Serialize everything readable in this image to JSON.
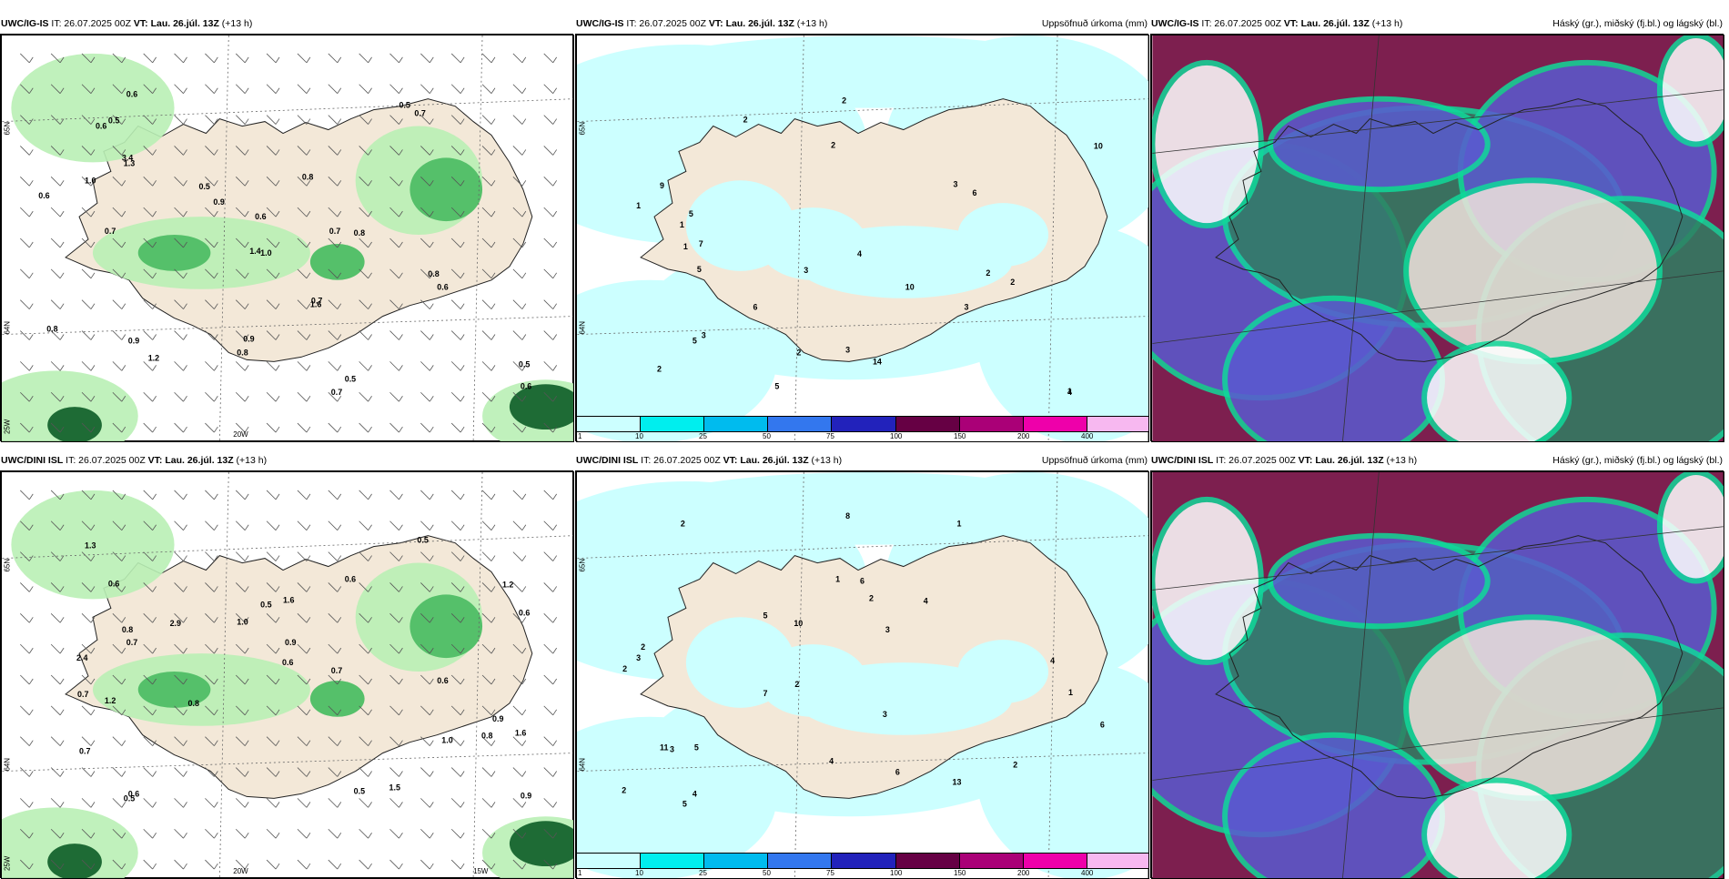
{
  "panels": [
    {
      "model": "UWC/IG-IS",
      "it": "IT: 26.07.2025 00Z",
      "vt_label": "VT:",
      "vt": "Lau. 26.júl. 13Z",
      "lead": "(+13 h)",
      "right": "",
      "labels": {
        "lat1": "65N",
        "lat2": "64N",
        "lat3": "25W",
        "lon1": "20W",
        "lon2": ""
      },
      "values": [
        "0.7",
        "0.5",
        "0.8",
        "0.6",
        "0.6",
        "0.8",
        "1.6",
        "0.7",
        "0.6",
        "0.6",
        "0.9",
        "0.5",
        "0.7",
        "1.0",
        "0.8",
        "0.5",
        "0.6",
        "0.8",
        "1.2",
        "3.4",
        "0.8",
        "0.7",
        "0.5",
        "1.3",
        "0.7",
        "0.9",
        "1.4",
        "1.0",
        "0.9",
        "0.6",
        "0.5"
      ]
    },
    {
      "model": "UWC/IG-IS",
      "it": "IT: 26.07.2025 00Z",
      "vt_label": "VT:",
      "vt": "Lau. 26.júl. 13Z",
      "lead": "(+13 h)",
      "right": "Uppsöfnuð úrkoma (mm)",
      "labels": {
        "lat1": "65N",
        "lat2": "64N",
        "lat3": "",
        "lon1": "",
        "lon2": ""
      },
      "values": [
        "2",
        "5",
        "3",
        "4",
        "2",
        "1",
        "5",
        "6",
        "10",
        "10",
        "3",
        "1",
        "2",
        "3",
        "5",
        "2",
        "3",
        "7",
        "5",
        "6",
        "9",
        "2",
        "14",
        "1",
        "2",
        "4",
        "3",
        "1",
        "2"
      ]
    },
    {
      "model": "UWC/IG-IS",
      "it": "IT: 26.07.2025 00Z",
      "vt_label": "VT:",
      "vt": "Lau. 26.júl. 13Z",
      "lead": "(+13 h)",
      "right": "Háský (gr.), miðský (fj.bl.) og lágský (bl.)",
      "labels": {
        "lat1": "",
        "lat2": "",
        "lat3": "",
        "lon1": "",
        "lon2": ""
      },
      "values": []
    },
    {
      "model": "UWC/DINI ISL",
      "it": "IT: 26.07.2025 00Z",
      "vt_label": "VT:",
      "vt": "Lau. 26.júl. 13Z",
      "lead": "(+13 h)",
      "right": "",
      "labels": {
        "lat1": "65N",
        "lat2": "64N",
        "lat3": "25W",
        "lon1": "20W",
        "lon2": "15W"
      },
      "values": [
        "0.6",
        "0.7",
        "0.5",
        "1.2",
        "0.9",
        "0.6",
        "0.5",
        "0.6",
        "1.0",
        "0.8",
        "0.7",
        "0.5",
        "0.6",
        "1.3",
        "0.6",
        "0.9",
        "0.7",
        "1.5",
        "1.6",
        "2.9",
        "0.8",
        "0.5",
        "1.0",
        "0.7",
        "0.8",
        "1.2",
        "2.4",
        "0.9",
        "0.6",
        "1.6"
      ]
    },
    {
      "model": "UWC/DINI ISL",
      "it": "IT: 26.07.2025 00Z",
      "vt_label": "VT:",
      "vt": "Lau. 26.júl. 13Z",
      "lead": "(+13 h)",
      "right": "Uppsöfnuð úrkoma (mm)",
      "labels": {
        "lat1": "65N",
        "lat2": "64N",
        "lat3": "",
        "lon1": "",
        "lon2": ""
      },
      "values": [
        "5",
        "2",
        "3",
        "4",
        "6",
        "1",
        "3",
        "8",
        "2",
        "10",
        "13",
        "11",
        "5",
        "2",
        "4",
        "3",
        "6",
        "7",
        "2",
        "4",
        "1",
        "2",
        "3",
        "6",
        "4",
        "1",
        "2",
        "5",
        "2"
      ]
    },
    {
      "model": "UWC/DINI ISL",
      "it": "IT: 26.07.2025 00Z",
      "vt_label": "VT:",
      "vt": "Lau. 26.júl. 13Z",
      "lead": "(+13 h)",
      "right": "Háský (gr.), miðský (fj.bl.) og lágský (bl.)",
      "labels": {
        "lat1": "",
        "lat2": "",
        "lat3": "",
        "lon1": "",
        "lon2": ""
      },
      "values": []
    }
  ],
  "colorbar": {
    "ticks": [
      "1",
      "10",
      "25",
      "50",
      "75",
      "100",
      "150",
      "200",
      "400"
    ],
    "colors": [
      "#ccffff",
      "#00eeee",
      "#00bbee",
      "#3377ee",
      "#2222bb",
      "#660044",
      "#aa0077",
      "#ee00aa",
      "#f7b8f0"
    ]
  },
  "palette": {
    "land": "#f3e8d8",
    "green_light": "#b9f0b5",
    "green": "#55c06a",
    "green_dark": "#1e6b35",
    "cyan_light": "#ccffff",
    "cloud_high": "#2f7f62",
    "cloud_mid": "#7d1f4f",
    "cloud_low": "#5a5ad0",
    "cloud_edge": "#10d99a"
  }
}
